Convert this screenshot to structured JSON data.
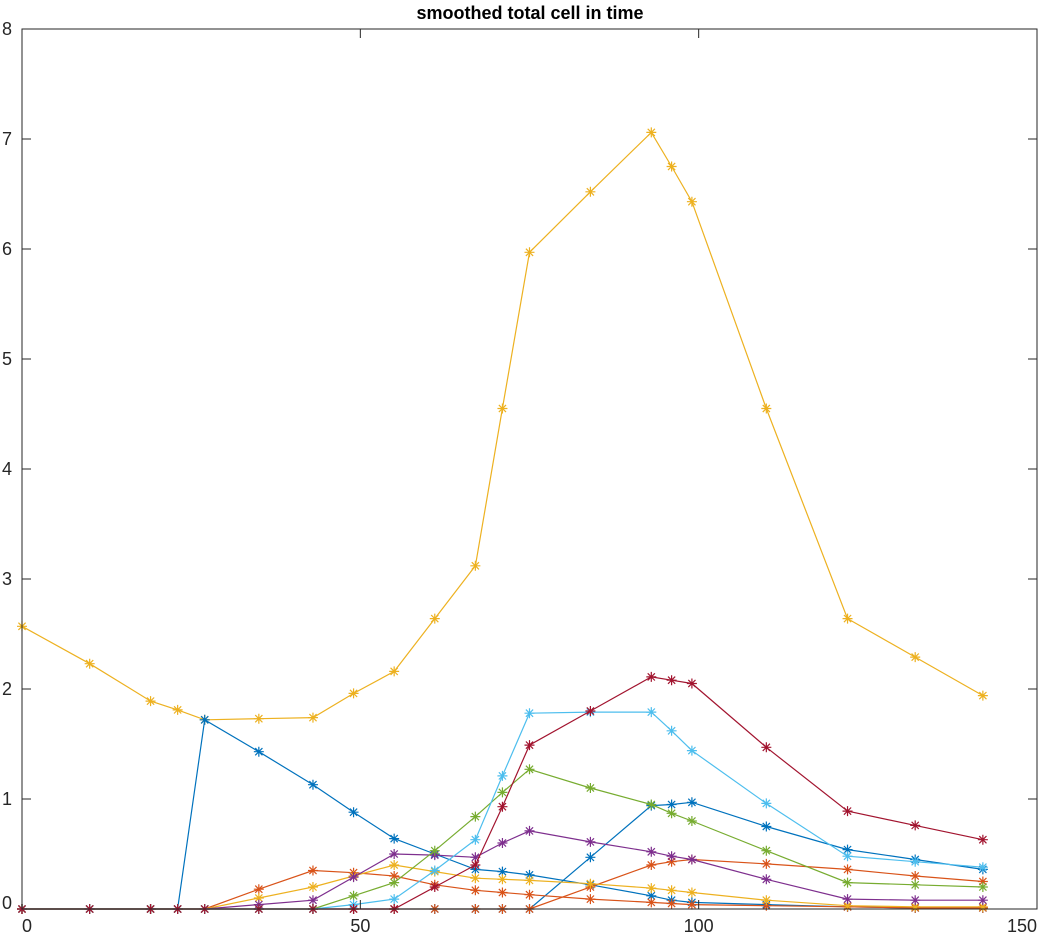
{
  "chart_data": {
    "type": "line",
    "title": "smoothed total cell in time",
    "xlabel": "",
    "ylabel": "",
    "xlim": [
      0,
      150
    ],
    "ylim": [
      0,
      8
    ],
    "xticks": [
      0,
      50,
      100,
      150
    ],
    "yticks": [
      0,
      1,
      2,
      3,
      4,
      5,
      6,
      7,
      8
    ],
    "grid": false,
    "marker": "asterisk",
    "series": [
      {
        "color": "#EDB120",
        "x": [
          0,
          10,
          19,
          23,
          27,
          35,
          43,
          49,
          55,
          61,
          67,
          71,
          75,
          84,
          93,
          96,
          99,
          110,
          122,
          132,
          142
        ],
        "y": [
          2.57,
          2.23,
          1.89,
          1.81,
          1.72,
          1.73,
          1.74,
          1.96,
          2.16,
          2.64,
          3.12,
          4.55,
          5.97,
          6.52,
          7.06,
          6.75,
          6.43,
          4.55,
          2.64,
          2.29,
          1.94
        ]
      },
      {
        "color": "#0072BD",
        "x": [
          0,
          10,
          19,
          23,
          27,
          35,
          43,
          49,
          55,
          61,
          67,
          71,
          75,
          84,
          93,
          96,
          99,
          110,
          122,
          132,
          142
        ],
        "y": [
          0,
          0,
          0,
          0,
          1.72,
          1.43,
          1.13,
          0.88,
          0.64,
          0.5,
          0.36,
          0.34,
          0.31,
          0.22,
          0.12,
          0.08,
          0.06,
          0.04,
          0.02,
          0.01,
          0.01
        ]
      },
      {
        "color": "#0072BD",
        "x": [
          0,
          10,
          19,
          23,
          27,
          35,
          43,
          49,
          55,
          61,
          67,
          71,
          75,
          84,
          93,
          96,
          99,
          110,
          122,
          132,
          142
        ],
        "y": [
          0,
          0,
          0,
          0,
          0,
          0,
          0,
          0,
          0,
          0,
          0,
          0,
          0,
          0.47,
          0.94,
          0.95,
          0.97,
          0.75,
          0.54,
          0.45,
          0.36
        ]
      },
      {
        "color": "#D95319",
        "x": [
          0,
          10,
          19,
          23,
          27,
          35,
          43,
          49,
          55,
          61,
          67,
          71,
          75,
          84,
          93,
          96,
          99,
          110,
          122,
          132,
          142
        ],
        "y": [
          0,
          0,
          0,
          0,
          0,
          0.18,
          0.35,
          0.33,
          0.3,
          0.22,
          0.17,
          0.15,
          0.13,
          0.09,
          0.06,
          0.05,
          0.04,
          0.03,
          0.02,
          0.01,
          0.01
        ]
      },
      {
        "color": "#D95319",
        "x": [
          0,
          10,
          19,
          23,
          27,
          35,
          43,
          49,
          55,
          61,
          67,
          71,
          75,
          84,
          93,
          96,
          99,
          110,
          122,
          132,
          142
        ],
        "y": [
          0,
          0,
          0,
          0,
          0,
          0,
          0,
          0,
          0,
          0,
          0,
          0,
          0,
          0.2,
          0.4,
          0.43,
          0.45,
          0.41,
          0.36,
          0.3,
          0.25
        ]
      },
      {
        "color": "#EDB120",
        "x": [
          0,
          10,
          19,
          23,
          27,
          35,
          43,
          49,
          55,
          61,
          67,
          71,
          75,
          84,
          93,
          96,
          99,
          110,
          122,
          132,
          142
        ],
        "y": [
          0,
          0,
          0,
          0,
          0,
          0.1,
          0.2,
          0.3,
          0.4,
          0.34,
          0.28,
          0.27,
          0.26,
          0.23,
          0.19,
          0.17,
          0.15,
          0.08,
          0.03,
          0.02,
          0.02
        ]
      },
      {
        "color": "#7E2F8E",
        "x": [
          0,
          10,
          19,
          23,
          27,
          35,
          43,
          49,
          55,
          61,
          67,
          71,
          75,
          84,
          93,
          96,
          99,
          110,
          122,
          132,
          142
        ],
        "y": [
          0,
          0,
          0,
          0,
          0,
          0.04,
          0.08,
          0.29,
          0.5,
          0.49,
          0.47,
          0.6,
          0.71,
          0.61,
          0.52,
          0.48,
          0.45,
          0.27,
          0.09,
          0.08,
          0.08
        ]
      },
      {
        "color": "#77AC30",
        "x": [
          0,
          10,
          19,
          23,
          27,
          35,
          43,
          49,
          55,
          61,
          67,
          71,
          75,
          84,
          93,
          96,
          99,
          110,
          122,
          132,
          142
        ],
        "y": [
          0,
          0,
          0,
          0,
          0,
          0,
          0,
          0.12,
          0.24,
          0.53,
          0.84,
          1.06,
          1.27,
          1.1,
          0.95,
          0.87,
          0.8,
          0.53,
          0.24,
          0.22,
          0.2
        ]
      },
      {
        "color": "#4DBEEE",
        "x": [
          0,
          10,
          19,
          23,
          27,
          35,
          43,
          49,
          55,
          61,
          67,
          71,
          75,
          84,
          93,
          96,
          99,
          110,
          122,
          132,
          142
        ],
        "y": [
          0,
          0,
          0,
          0,
          0,
          0,
          0,
          0.04,
          0.09,
          0.35,
          0.63,
          1.21,
          1.78,
          1.79,
          1.79,
          1.62,
          1.44,
          0.96,
          0.48,
          0.43,
          0.38
        ]
      },
      {
        "color": "#A2142F",
        "x": [
          0,
          10,
          19,
          23,
          27,
          35,
          43,
          49,
          55,
          61,
          67,
          71,
          75,
          84,
          93,
          96,
          99,
          110,
          122,
          132,
          142
        ],
        "y": [
          0,
          0,
          0,
          0,
          0,
          0,
          0,
          0,
          0,
          0.2,
          0.4,
          0.93,
          1.49,
          1.8,
          2.11,
          2.08,
          2.05,
          1.47,
          0.89,
          0.76,
          0.63
        ]
      }
    ]
  }
}
